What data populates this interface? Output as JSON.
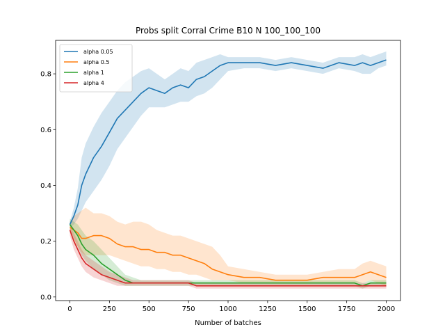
{
  "chart_data": {
    "type": "line",
    "title": "Probs split Corral Crime B10 N 100_100_100",
    "xlabel": "Number of batches",
    "ylabel": "",
    "xlim": [
      -90,
      2090
    ],
    "ylim": [
      -0.013,
      0.92
    ],
    "xticks": [
      0,
      250,
      500,
      750,
      1000,
      1250,
      1500,
      1750,
      2000
    ],
    "yticks": [
      0.0,
      0.2,
      0.4,
      0.6,
      0.8
    ],
    "ytick_labels": [
      "0.0",
      "0.2",
      "0.4",
      "0.6",
      "0.8"
    ],
    "grid": false,
    "legend_position": "upper-left",
    "x": [
      0,
      25,
      50,
      75,
      100,
      150,
      200,
      250,
      300,
      350,
      400,
      450,
      500,
      550,
      600,
      650,
      700,
      750,
      800,
      850,
      900,
      950,
      1000,
      1100,
      1200,
      1300,
      1400,
      1500,
      1600,
      1700,
      1800,
      1850,
      1900,
      1950,
      2000
    ],
    "series": [
      {
        "name": "alpha 0.05",
        "color": "#1f77b4",
        "values": [
          0.26,
          0.29,
          0.33,
          0.4,
          0.44,
          0.5,
          0.54,
          0.59,
          0.64,
          0.67,
          0.7,
          0.73,
          0.75,
          0.74,
          0.73,
          0.75,
          0.76,
          0.75,
          0.78,
          0.79,
          0.81,
          0.83,
          0.84,
          0.84,
          0.84,
          0.83,
          0.84,
          0.83,
          0.82,
          0.84,
          0.83,
          0.84,
          0.83,
          0.84,
          0.85
        ],
        "lower": [
          0.25,
          0.26,
          0.28,
          0.31,
          0.34,
          0.38,
          0.42,
          0.47,
          0.53,
          0.57,
          0.61,
          0.65,
          0.68,
          0.68,
          0.68,
          0.69,
          0.7,
          0.7,
          0.72,
          0.73,
          0.75,
          0.78,
          0.81,
          0.82,
          0.82,
          0.81,
          0.82,
          0.81,
          0.8,
          0.82,
          0.81,
          0.8,
          0.8,
          0.82,
          0.83
        ],
        "upper": [
          0.27,
          0.32,
          0.39,
          0.5,
          0.55,
          0.61,
          0.66,
          0.7,
          0.74,
          0.77,
          0.79,
          0.81,
          0.82,
          0.8,
          0.78,
          0.8,
          0.82,
          0.81,
          0.84,
          0.85,
          0.86,
          0.87,
          0.86,
          0.86,
          0.86,
          0.85,
          0.86,
          0.85,
          0.84,
          0.86,
          0.86,
          0.87,
          0.86,
          0.87,
          0.88
        ]
      },
      {
        "name": "alpha 0.5",
        "color": "#ff7f0e",
        "values": [
          0.25,
          0.24,
          0.23,
          0.21,
          0.21,
          0.22,
          0.22,
          0.21,
          0.19,
          0.18,
          0.18,
          0.17,
          0.17,
          0.16,
          0.16,
          0.15,
          0.15,
          0.14,
          0.13,
          0.12,
          0.1,
          0.09,
          0.08,
          0.07,
          0.07,
          0.06,
          0.06,
          0.06,
          0.07,
          0.07,
          0.07,
          0.08,
          0.09,
          0.08,
          0.07
        ],
        "lower": [
          0.23,
          0.2,
          0.18,
          0.16,
          0.15,
          0.15,
          0.15,
          0.15,
          0.14,
          0.13,
          0.12,
          0.11,
          0.11,
          0.1,
          0.1,
          0.09,
          0.09,
          0.08,
          0.08,
          0.07,
          0.06,
          0.06,
          0.06,
          0.05,
          0.05,
          0.05,
          0.05,
          0.05,
          0.05,
          0.05,
          0.05,
          0.05,
          0.06,
          0.05,
          0.04
        ],
        "upper": [
          0.27,
          0.29,
          0.3,
          0.31,
          0.32,
          0.3,
          0.3,
          0.29,
          0.27,
          0.26,
          0.27,
          0.27,
          0.26,
          0.24,
          0.23,
          0.22,
          0.22,
          0.21,
          0.2,
          0.19,
          0.18,
          0.15,
          0.11,
          0.1,
          0.09,
          0.08,
          0.08,
          0.08,
          0.09,
          0.1,
          0.1,
          0.12,
          0.13,
          0.12,
          0.11
        ]
      },
      {
        "name": "alpha 1",
        "color": "#2ca02c",
        "values": [
          0.26,
          0.24,
          0.22,
          0.19,
          0.17,
          0.15,
          0.12,
          0.1,
          0.08,
          0.06,
          0.05,
          0.05,
          0.05,
          0.05,
          0.05,
          0.05,
          0.05,
          0.05,
          0.05,
          0.05,
          0.05,
          0.05,
          0.05,
          0.05,
          0.05,
          0.05,
          0.05,
          0.05,
          0.05,
          0.05,
          0.05,
          0.04,
          0.05,
          0.05,
          0.05
        ],
        "lower": [
          0.24,
          0.21,
          0.18,
          0.15,
          0.13,
          0.1,
          0.08,
          0.06,
          0.05,
          0.04,
          0.04,
          0.04,
          0.04,
          0.04,
          0.04,
          0.04,
          0.04,
          0.04,
          0.04,
          0.04,
          0.04,
          0.04,
          0.04,
          0.04,
          0.04,
          0.04,
          0.04,
          0.04,
          0.04,
          0.04,
          0.04,
          0.03,
          0.04,
          0.04,
          0.04
        ],
        "upper": [
          0.28,
          0.27,
          0.26,
          0.24,
          0.22,
          0.2,
          0.17,
          0.14,
          0.11,
          0.08,
          0.07,
          0.06,
          0.06,
          0.06,
          0.06,
          0.06,
          0.06,
          0.06,
          0.06,
          0.06,
          0.06,
          0.06,
          0.06,
          0.06,
          0.06,
          0.06,
          0.06,
          0.06,
          0.06,
          0.06,
          0.06,
          0.05,
          0.06,
          0.06,
          0.06
        ]
      },
      {
        "name": "alpha 4",
        "color": "#d62728",
        "values": [
          0.24,
          0.2,
          0.17,
          0.14,
          0.12,
          0.1,
          0.08,
          0.07,
          0.06,
          0.05,
          0.05,
          0.05,
          0.05,
          0.05,
          0.05,
          0.05,
          0.05,
          0.05,
          0.04,
          0.04,
          0.04,
          0.04,
          0.04,
          0.04,
          0.04,
          0.04,
          0.04,
          0.04,
          0.04,
          0.04,
          0.04,
          0.04,
          0.04,
          0.04,
          0.04
        ],
        "lower": [
          0.22,
          0.17,
          0.14,
          0.11,
          0.09,
          0.07,
          0.06,
          0.05,
          0.04,
          0.04,
          0.04,
          0.04,
          0.04,
          0.04,
          0.04,
          0.04,
          0.04,
          0.04,
          0.03,
          0.03,
          0.03,
          0.03,
          0.03,
          0.03,
          0.03,
          0.03,
          0.03,
          0.03,
          0.03,
          0.03,
          0.03,
          0.03,
          0.03,
          0.03,
          0.03
        ],
        "upper": [
          0.26,
          0.23,
          0.2,
          0.17,
          0.15,
          0.13,
          0.11,
          0.09,
          0.08,
          0.07,
          0.06,
          0.06,
          0.06,
          0.06,
          0.06,
          0.06,
          0.06,
          0.06,
          0.05,
          0.05,
          0.05,
          0.05,
          0.05,
          0.05,
          0.05,
          0.05,
          0.05,
          0.05,
          0.05,
          0.05,
          0.05,
          0.05,
          0.05,
          0.05,
          0.05
        ]
      }
    ]
  }
}
